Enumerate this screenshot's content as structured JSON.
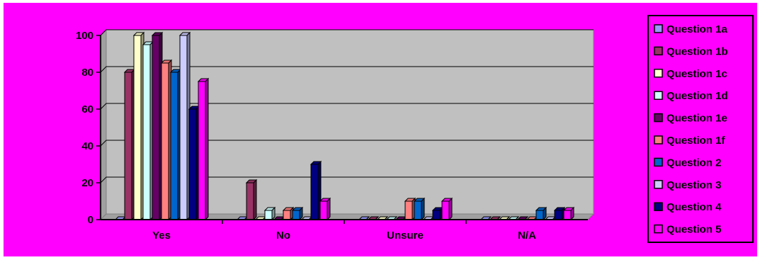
{
  "chart_data": {
    "type": "bar",
    "categories": [
      "Yes",
      "No",
      "Unsure",
      "N/A"
    ],
    "ylim": [
      0,
      100
    ],
    "yticks": [
      0,
      20,
      40,
      60,
      80,
      100
    ],
    "grid": true,
    "legend_position": "right",
    "background_color": "#ff00ff",
    "plot_area_color": "#c0c0c0",
    "series": [
      {
        "name": "Question 1a",
        "color": "#9999ff",
        "values": [
          0,
          0,
          0,
          0
        ]
      },
      {
        "name": "Question 1b",
        "color": "#993366",
        "values": [
          80,
          20,
          0,
          0
        ]
      },
      {
        "name": "Question 1c",
        "color": "#ffffcc",
        "values": [
          100,
          0,
          0,
          0
        ]
      },
      {
        "name": "Question 1d",
        "color": "#ccffff",
        "values": [
          95,
          5,
          0,
          0
        ]
      },
      {
        "name": "Question 1e",
        "color": "#660066",
        "values": [
          100,
          0,
          0,
          0
        ]
      },
      {
        "name": "Question 1f",
        "color": "#ff8080",
        "values": [
          85,
          5,
          10,
          0
        ]
      },
      {
        "name": "Question 2",
        "color": "#0066cc",
        "values": [
          80,
          5,
          10,
          5
        ]
      },
      {
        "name": "Question 3",
        "color": "#ccccff",
        "values": [
          100,
          0,
          0,
          0
        ]
      },
      {
        "name": "Question 4",
        "color": "#000080",
        "values": [
          60,
          30,
          5,
          5
        ]
      },
      {
        "name": "Question 5",
        "color": "#ff00ff",
        "values": [
          75,
          10,
          10,
          5
        ]
      }
    ]
  }
}
